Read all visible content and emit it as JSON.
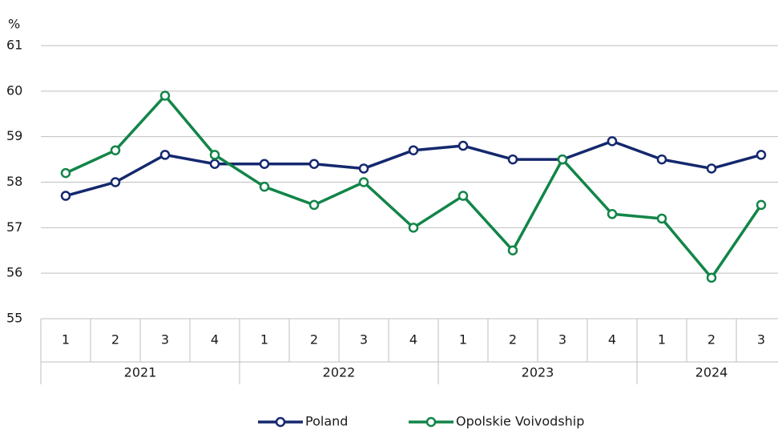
{
  "chart_data": {
    "type": "line",
    "y_unit": "%",
    "category_groups": [
      {
        "name": "2021",
        "categories": [
          "1",
          "2",
          "3",
          "4"
        ]
      },
      {
        "name": "2022",
        "categories": [
          "1",
          "2",
          "3",
          "4"
        ]
      },
      {
        "name": "2023",
        "categories": [
          "1",
          "2",
          "3",
          "4"
        ]
      },
      {
        "name": "2024",
        "categories": [
          "1",
          "2",
          "3"
        ]
      }
    ],
    "series": [
      {
        "name": "Poland",
        "color": "#14286e",
        "values": [
          57.7,
          58.0,
          58.6,
          58.4,
          58.4,
          58.4,
          58.3,
          58.7,
          58.8,
          58.5,
          58.5,
          58.9,
          58.5,
          58.3,
          58.6
        ]
      },
      {
        "name": "Opolskie Voivodship",
        "color": "#128548",
        "values": [
          58.2,
          58.7,
          59.9,
          58.6,
          57.9,
          57.5,
          58.0,
          57.0,
          57.7,
          56.5,
          58.5,
          57.3,
          57.2,
          55.9,
          57.5
        ]
      }
    ],
    "ylim": [
      55,
      61
    ],
    "yticks": [
      55,
      56,
      57,
      58,
      59,
      60,
      61
    ],
    "grid": true,
    "legend": "bottom"
  }
}
